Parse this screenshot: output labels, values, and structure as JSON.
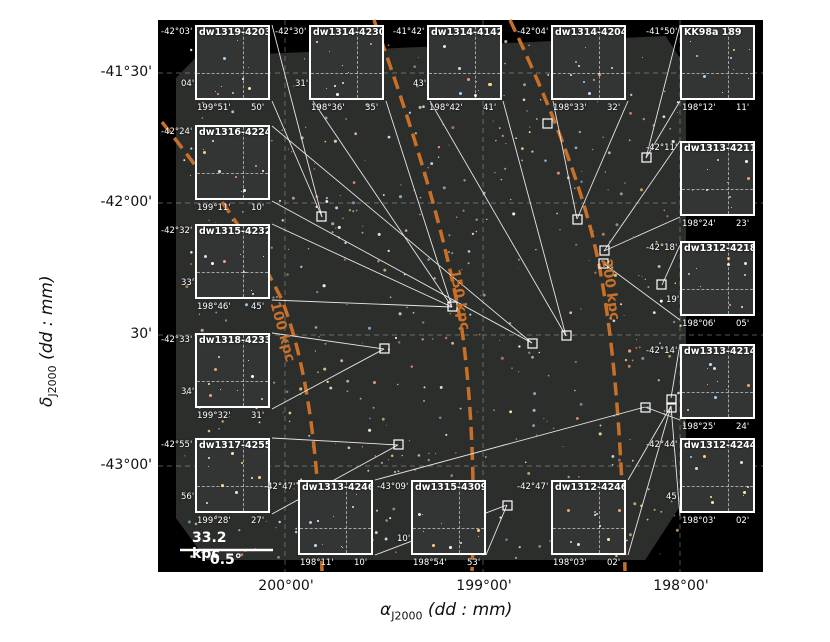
{
  "axes": {
    "ylabel": "δJ2000 (dd : mm)",
    "ylabel_main": "δ",
    "ylabel_sub": "J2000",
    "ylabel_unit": "(dd : mm)",
    "xlabel_main": "α",
    "xlabel_sub": "J2000",
    "xlabel_unit": "(dd : mm)",
    "yticks": [
      "-41°30'",
      "-42°00'",
      "30'",
      "-43°00'"
    ],
    "xticks": [
      "200°00'",
      "199°00'",
      "198°00'"
    ]
  },
  "arcs": [
    "100 kpc",
    "150 kpc",
    "200 kpc"
  ],
  "colors": {
    "arc": "#c8702a",
    "background": "#000000",
    "survey": "#2c2e2c"
  },
  "scalebar": {
    "distance": "33.2 kpc",
    "angle": "0.5°"
  },
  "insets": [
    {
      "name": "dw1319-4203",
      "title": "dw1319-4203",
      "ly1": "-42°03'",
      "ly2": "04'",
      "lx1": "199°51'",
      "lx2": "50'"
    },
    {
      "name": "dw1314-4230",
      "title": "dw1314-4230",
      "ly1": "-42°30'",
      "ly2": "31'",
      "lx1": "198°36'",
      "lx2": "35'"
    },
    {
      "name": "dw1314-4142",
      "title": "dw1314-4142",
      "ly1": "-41°42'",
      "ly2": "43'",
      "lx1": "198°42'",
      "lx2": "41'"
    },
    {
      "name": "dw1314-4204",
      "title": "dw1314-4204",
      "ly1": "-42°04'",
      "ly2": "",
      "lx1": "198°33'",
      "lx2": "32'"
    },
    {
      "name": "kk98a-189",
      "title": "KK98a 189",
      "ly1": "-41°50'",
      "ly2": "",
      "lx1": "198°12'",
      "lx2": "11'"
    },
    {
      "name": "dw1316-4224",
      "title": "dw1316-4224",
      "ly1": "-42°24'",
      "ly2": "",
      "lx1": "199°11'",
      "lx2": "10'"
    },
    {
      "name": "dw1313-4211",
      "title": "dw1313-4211",
      "ly1": "-42°11'",
      "ly2": "",
      "lx1": "198°24'",
      "lx2": "23'"
    },
    {
      "name": "dw1315-4232",
      "title": "dw1315-4232",
      "ly1": "-42°32'",
      "ly2": "33'",
      "lx1": "198°46'",
      "lx2": "45'"
    },
    {
      "name": "dw1312-4218",
      "title": "dw1312-4218",
      "ly1": "-42°18'",
      "ly2": "19'",
      "lx1": "198°06'",
      "lx2": "05'"
    },
    {
      "name": "dw1318-4233",
      "title": "dw1318-4233",
      "ly1": "-42°33'",
      "ly2": "34'",
      "lx1": "199°32'",
      "lx2": "31'"
    },
    {
      "name": "dw1313-4214",
      "title": "dw1313-4214",
      "ly1": "-42°14'",
      "ly2": "",
      "lx1": "198°25'",
      "lx2": "24'"
    },
    {
      "name": "dw1317-4255",
      "title": "dw1317-4255",
      "ly1": "-42°55'",
      "ly2": "56'",
      "lx1": "199°28'",
      "lx2": "27'"
    },
    {
      "name": "dw1313-4246",
      "title": "dw1313-4246",
      "ly1": "-42°47'",
      "ly2": "",
      "lx1": "198°11'",
      "lx2": "10'"
    },
    {
      "name": "dw1315-4309",
      "title": "dw1315-4309",
      "ly1": "-43°09'",
      "ly2": "10'",
      "lx1": "198°54'",
      "lx2": "53'"
    },
    {
      "name": "dw1312-4246",
      "title": "dw1312-4246",
      "ly1": "-42°47'",
      "ly2": "",
      "lx1": "198°03'",
      "lx2": "02'"
    },
    {
      "name": "dw1312-4244",
      "title": "dw1312-4244",
      "ly1": "-42°44'",
      "ly2": "45'",
      "lx1": "198°03'",
      "lx2": "02'"
    }
  ]
}
